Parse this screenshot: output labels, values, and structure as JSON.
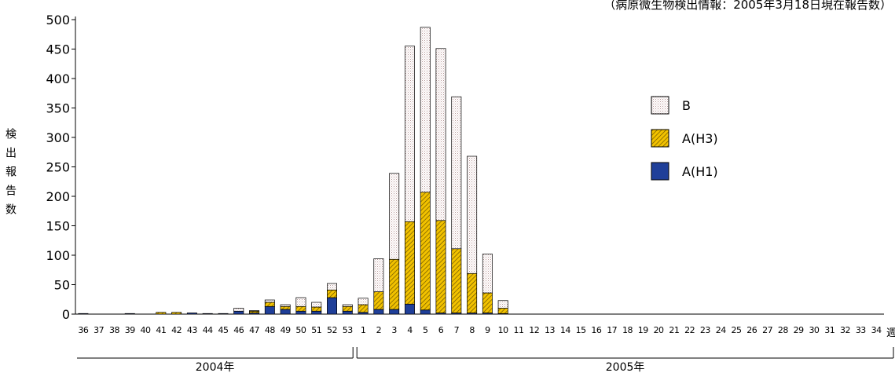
{
  "chart_data": {
    "type": "bar",
    "stacked": true,
    "title": "",
    "source_note": "（病原微生物検出情報：2005年3月18日現在報告数）",
    "ylabel": "検出報告数",
    "xlabel": "週",
    "ylim": [
      0,
      500
    ],
    "yticks": [
      "0",
      "50",
      "100",
      "150",
      "200",
      "250",
      "300",
      "350",
      "400",
      "450",
      "500"
    ],
    "legend_position": "right",
    "categories": [
      "36",
      "37",
      "38",
      "39",
      "40",
      "41",
      "42",
      "43",
      "44",
      "45",
      "46",
      "47",
      "48",
      "49",
      "50",
      "51",
      "52",
      "53",
      "1",
      "2",
      "3",
      "4",
      "5",
      "6",
      "7",
      "8",
      "9",
      "10",
      "11",
      "12",
      "13",
      "14",
      "15",
      "16",
      "17",
      "18",
      "19",
      "20",
      "21",
      "22",
      "23",
      "24",
      "25",
      "26",
      "27",
      "28",
      "29",
      "30",
      "31",
      "32",
      "33",
      "34"
    ],
    "year_groups": [
      {
        "label": "2004年",
        "from": "36",
        "to": "53"
      },
      {
        "label": "2005年",
        "from": "1",
        "to": "34"
      }
    ],
    "series": [
      {
        "name": "A(H1)",
        "color": "#1f3f99",
        "pattern": "solid",
        "values": [
          1,
          0,
          0,
          1,
          0,
          0,
          0,
          2,
          1,
          1,
          5,
          2,
          13,
          8,
          5,
          5,
          28,
          5,
          3,
          8,
          8,
          17,
          7,
          2,
          2,
          2,
          2,
          1,
          0,
          0,
          0,
          0,
          0,
          0,
          0,
          0,
          0,
          0,
          0,
          0,
          0,
          0,
          0,
          0,
          0,
          0,
          0,
          0,
          0,
          0,
          0,
          0
        ]
      },
      {
        "name": "A(H3)",
        "color": "#f2c200",
        "pattern": "hatch",
        "values": [
          0,
          0,
          0,
          0,
          0,
          3,
          3,
          0,
          0,
          0,
          0,
          3,
          7,
          5,
          8,
          7,
          13,
          8,
          13,
          30,
          85,
          140,
          200,
          157,
          109,
          67,
          34,
          9,
          0,
          0,
          0,
          0,
          0,
          0,
          0,
          0,
          0,
          0,
          0,
          0,
          0,
          0,
          0,
          0,
          0,
          0,
          0,
          0,
          0,
          0,
          0,
          0
        ]
      },
      {
        "name": "B",
        "color": "#f4eaea",
        "pattern": "dots",
        "values": [
          0,
          0,
          0,
          0,
          0,
          0,
          0,
          0,
          0,
          0,
          5,
          1,
          4,
          3,
          15,
          8,
          11,
          3,
          11,
          56,
          146,
          298,
          280,
          292,
          258,
          199,
          66,
          13,
          0,
          0,
          0,
          0,
          0,
          0,
          0,
          0,
          0,
          0,
          0,
          0,
          0,
          0,
          0,
          0,
          0,
          0,
          0,
          0,
          0,
          0,
          0,
          0
        ]
      }
    ]
  }
}
